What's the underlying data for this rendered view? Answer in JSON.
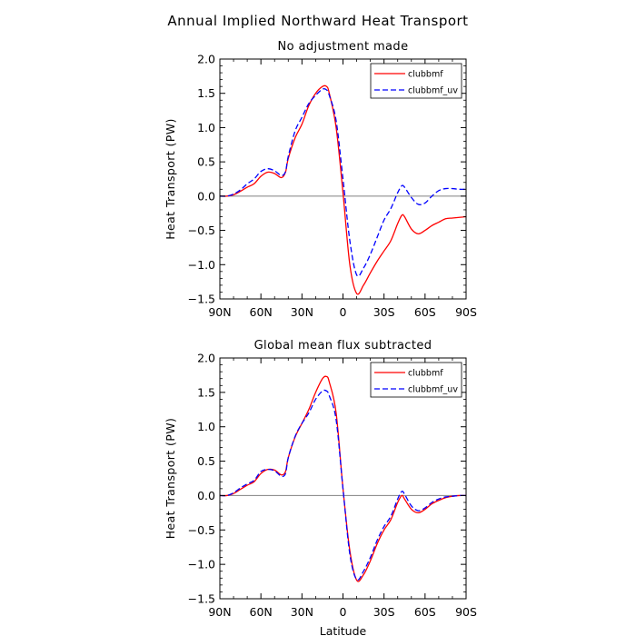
{
  "title": "Annual Implied Northward Heat Transport",
  "colors": {
    "clubbmf": "#ff0000",
    "clubbmf_uv": "#0000ff",
    "zero_line": "#808080"
  },
  "chart_data": [
    {
      "type": "line",
      "title": "No adjustment made",
      "ylabel": "Heat Transport (PW)",
      "xlabel": "",
      "xlim": [
        -90,
        90
      ],
      "ylim": [
        -1.5,
        2.0
      ],
      "x_tick_values": [
        -90,
        -60,
        -30,
        0,
        30,
        60,
        90
      ],
      "x_tick_labels": [
        "90N",
        "60N",
        "30N",
        "0",
        "30S",
        "60S",
        "90S"
      ],
      "y_tick_values": [
        -1.5,
        -1.0,
        -0.5,
        0.0,
        0.5,
        1.0,
        1.5,
        2.0
      ],
      "y_tick_labels": [
        "−1.5",
        "−1.0",
        "−0.5",
        "0.0",
        "0.5",
        "1.0",
        "1.5",
        "2.0"
      ],
      "legend": "top-right",
      "x": [
        -90,
        -85,
        -80,
        -75,
        -70,
        -65,
        -60,
        -55,
        -50,
        -45,
        -42,
        -40,
        -35,
        -30,
        -25,
        -20,
        -15,
        -12,
        -10,
        -5,
        0,
        5,
        10,
        15,
        20,
        25,
        30,
        35,
        40,
        43,
        45,
        50,
        55,
        60,
        65,
        70,
        75,
        80,
        85,
        90
      ],
      "series": [
        {
          "name": "clubbmf",
          "style": "solid",
          "values": [
            0.0,
            0.0,
            0.02,
            0.07,
            0.13,
            0.18,
            0.29,
            0.35,
            0.33,
            0.27,
            0.35,
            0.55,
            0.85,
            1.05,
            1.32,
            1.5,
            1.6,
            1.6,
            1.5,
            1.0,
            0.05,
            -1.0,
            -1.42,
            -1.3,
            -1.12,
            -0.95,
            -0.8,
            -0.65,
            -0.4,
            -0.28,
            -0.3,
            -0.48,
            -0.55,
            -0.5,
            -0.43,
            -0.38,
            -0.33,
            -0.32,
            -0.31,
            -0.3
          ]
        },
        {
          "name": "clubbmf_uv",
          "style": "dashed",
          "values": [
            0.0,
            0.0,
            0.03,
            0.09,
            0.18,
            0.25,
            0.36,
            0.4,
            0.37,
            0.3,
            0.36,
            0.58,
            0.95,
            1.15,
            1.35,
            1.47,
            1.56,
            1.55,
            1.47,
            1.1,
            0.25,
            -0.65,
            -1.15,
            -1.05,
            -0.85,
            -0.6,
            -0.35,
            -0.18,
            0.05,
            0.15,
            0.13,
            -0.02,
            -0.12,
            -0.1,
            0.0,
            0.08,
            0.11,
            0.11,
            0.1,
            0.1
          ]
        }
      ]
    },
    {
      "type": "line",
      "title": "Global mean flux subtracted",
      "ylabel": "Heat Transport (PW)",
      "xlabel": "Latitude",
      "xlim": [
        -90,
        90
      ],
      "ylim": [
        -1.5,
        2.0
      ],
      "x_tick_values": [
        -90,
        -60,
        -30,
        0,
        30,
        60,
        90
      ],
      "x_tick_labels": [
        "90N",
        "60N",
        "30N",
        "0",
        "30S",
        "60S",
        "90S"
      ],
      "y_tick_values": [
        -1.5,
        -1.0,
        -0.5,
        0.0,
        0.5,
        1.0,
        1.5,
        2.0
      ],
      "y_tick_labels": [
        "−1.5",
        "−1.0",
        "−0.5",
        "0.0",
        "0.5",
        "1.0",
        "1.5",
        "2.0"
      ],
      "legend": "top-right",
      "x": [
        -90,
        -85,
        -80,
        -75,
        -70,
        -65,
        -60,
        -55,
        -50,
        -45,
        -42,
        -40,
        -35,
        -30,
        -25,
        -20,
        -15,
        -12,
        -10,
        -5,
        0,
        5,
        10,
        15,
        20,
        25,
        30,
        35,
        40,
        43,
        45,
        50,
        55,
        60,
        65,
        70,
        75,
        80,
        85,
        90
      ],
      "series": [
        {
          "name": "clubbmf",
          "style": "solid",
          "values": [
            0.0,
            0.0,
            0.03,
            0.09,
            0.15,
            0.2,
            0.32,
            0.38,
            0.37,
            0.3,
            0.35,
            0.55,
            0.85,
            1.05,
            1.25,
            1.5,
            1.7,
            1.73,
            1.65,
            1.2,
            0.1,
            -0.8,
            -1.23,
            -1.15,
            -0.95,
            -0.7,
            -0.5,
            -0.35,
            -0.1,
            -0.0,
            -0.05,
            -0.2,
            -0.25,
            -0.2,
            -0.12,
            -0.07,
            -0.03,
            -0.01,
            0.0,
            0.0
          ]
        },
        {
          "name": "clubbmf_uv",
          "style": "dashed",
          "values": [
            0.0,
            0.0,
            0.04,
            0.11,
            0.17,
            0.22,
            0.35,
            0.38,
            0.36,
            0.28,
            0.32,
            0.55,
            0.86,
            1.05,
            1.2,
            1.4,
            1.52,
            1.52,
            1.45,
            1.1,
            0.1,
            -0.85,
            -1.22,
            -1.1,
            -0.9,
            -0.65,
            -0.45,
            -0.3,
            -0.05,
            0.06,
            0.02,
            -0.15,
            -0.22,
            -0.18,
            -0.1,
            -0.05,
            -0.02,
            -0.01,
            0.0,
            0.0
          ]
        }
      ]
    }
  ]
}
